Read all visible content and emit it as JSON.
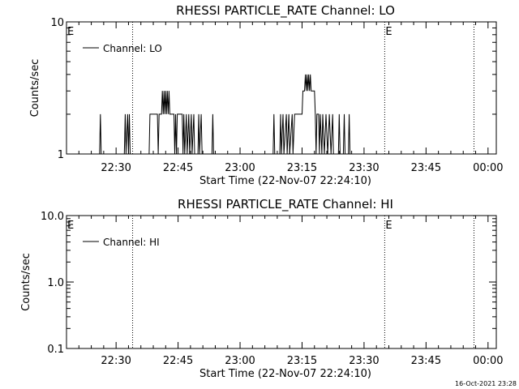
{
  "chart_data": [
    {
      "type": "line",
      "title": "RHESSI PARTICLE_RATE Channel: LO",
      "xlabel": "Start Time (22-Nov-07 22:24:10)",
      "ylabel": "Counts/sec",
      "yscale": "log",
      "ylim": [
        1,
        10
      ],
      "xlim_minutes": [
        -6,
        46
      ],
      "y_tick_labels": [
        "10",
        "1"
      ],
      "y_tick_values": [
        10,
        1
      ],
      "x_ticks": [
        "22:30",
        "22:45",
        "23:00",
        "23:15",
        "23:30",
        "23:45",
        "00:00"
      ],
      "x_tick_minutes": [
        0,
        7.5,
        15,
        22.5,
        30,
        37.5,
        45
      ],
      "legend": "Channel: LO",
      "legend_position": "top-left",
      "event_markers": [
        {
          "label": "E",
          "x_minutes": -6
        },
        {
          "label": "",
          "x_minutes": 2
        },
        {
          "label": "E",
          "x_minutes": 32.5
        },
        {
          "label": "",
          "x_minutes": 43.3
        }
      ],
      "series": [
        {
          "name": "Channel: LO",
          "points": [
            [
              -2.0,
              1
            ],
            [
              -1.9,
              2
            ],
            [
              -1.8,
              1
            ],
            [
              1.0,
              1
            ],
            [
              1.1,
              2
            ],
            [
              1.2,
              1
            ],
            [
              1.4,
              2
            ],
            [
              1.5,
              1
            ],
            [
              1.6,
              2
            ],
            [
              1.7,
              1
            ],
            [
              4.0,
              1
            ],
            [
              4.1,
              2
            ],
            [
              5.0,
              2
            ],
            [
              5.1,
              1
            ],
            [
              5.2,
              2
            ],
            [
              5.5,
              2
            ],
            [
              5.6,
              3
            ],
            [
              5.7,
              2
            ],
            [
              5.8,
              3
            ],
            [
              5.9,
              2
            ],
            [
              6.0,
              3
            ],
            [
              6.1,
              2
            ],
            [
              6.2,
              3
            ],
            [
              6.3,
              2
            ],
            [
              6.4,
              3
            ],
            [
              6.5,
              2
            ],
            [
              7.0,
              2
            ],
            [
              7.1,
              1
            ],
            [
              7.2,
              2
            ],
            [
              7.3,
              1
            ],
            [
              7.4,
              2
            ],
            [
              8.0,
              2
            ],
            [
              8.1,
              1
            ],
            [
              8.2,
              2
            ],
            [
              8.3,
              1
            ],
            [
              8.5,
              2
            ],
            [
              8.6,
              1
            ],
            [
              8.8,
              2
            ],
            [
              8.9,
              1
            ],
            [
              9.1,
              2
            ],
            [
              9.2,
              1
            ],
            [
              9.4,
              2
            ],
            [
              9.5,
              1
            ],
            [
              9.9,
              1
            ],
            [
              10.0,
              2
            ],
            [
              10.1,
              1
            ],
            [
              10.3,
              2
            ],
            [
              10.4,
              1
            ],
            [
              11.6,
              1
            ],
            [
              11.7,
              2
            ],
            [
              11.8,
              1
            ],
            [
              19.0,
              1
            ],
            [
              19.1,
              2
            ],
            [
              19.2,
              1
            ],
            [
              19.8,
              1
            ],
            [
              19.9,
              2
            ],
            [
              20.0,
              1
            ],
            [
              20.2,
              2
            ],
            [
              20.3,
              1
            ],
            [
              20.6,
              2
            ],
            [
              20.7,
              1
            ],
            [
              20.9,
              2
            ],
            [
              21.0,
              1
            ],
            [
              21.3,
              2
            ],
            [
              21.4,
              1
            ],
            [
              21.6,
              2
            ],
            [
              22.5,
              2
            ],
            [
              22.6,
              3
            ],
            [
              22.8,
              3
            ],
            [
              22.9,
              4
            ],
            [
              23.0,
              3
            ],
            [
              23.1,
              4
            ],
            [
              23.2,
              3
            ],
            [
              23.3,
              4
            ],
            [
              23.4,
              3
            ],
            [
              23.5,
              4
            ],
            [
              23.6,
              3
            ],
            [
              24.0,
              3
            ],
            [
              24.1,
              2
            ],
            [
              24.2,
              1
            ],
            [
              24.3,
              2
            ],
            [
              24.5,
              2
            ],
            [
              24.6,
              1
            ],
            [
              24.7,
              2
            ],
            [
              24.9,
              1
            ],
            [
              25.0,
              2
            ],
            [
              25.2,
              1
            ],
            [
              25.4,
              2
            ],
            [
              25.6,
              1
            ],
            [
              25.8,
              2
            ],
            [
              26.0,
              1
            ],
            [
              26.2,
              2
            ],
            [
              26.3,
              1
            ],
            [
              26.9,
              1
            ],
            [
              27.0,
              2
            ],
            [
              27.1,
              1
            ],
            [
              27.5,
              1
            ],
            [
              27.6,
              2
            ],
            [
              27.7,
              1
            ],
            [
              28.1,
              1
            ],
            [
              28.2,
              2
            ],
            [
              28.3,
              1
            ]
          ]
        }
      ]
    },
    {
      "type": "line",
      "title": "RHESSI PARTICLE_RATE Channel: HI",
      "xlabel": "Start Time (22-Nov-07 22:24:10)",
      "ylabel": "Counts/sec",
      "yscale": "log",
      "ylim": [
        0.1,
        10
      ],
      "xlim_minutes": [
        -6,
        46
      ],
      "y_tick_labels": [
        "10.0",
        "1.0",
        "0.1"
      ],
      "y_tick_values": [
        10,
        1,
        0.1
      ],
      "x_ticks": [
        "22:30",
        "22:45",
        "23:00",
        "23:15",
        "23:30",
        "23:45",
        "00:00"
      ],
      "x_tick_minutes": [
        0,
        7.5,
        15,
        22.5,
        30,
        37.5,
        45
      ],
      "legend": "Channel: HI",
      "legend_position": "top-left",
      "event_markers": [
        {
          "label": "E",
          "x_minutes": -6
        },
        {
          "label": "",
          "x_minutes": 2
        },
        {
          "label": "E",
          "x_minutes": 32.5
        },
        {
          "label": "",
          "x_minutes": 43.3
        }
      ],
      "series": [
        {
          "name": "Channel: HI",
          "points": []
        }
      ]
    }
  ],
  "footer": {
    "timestamp": "16-Oct-2021 23:28"
  }
}
